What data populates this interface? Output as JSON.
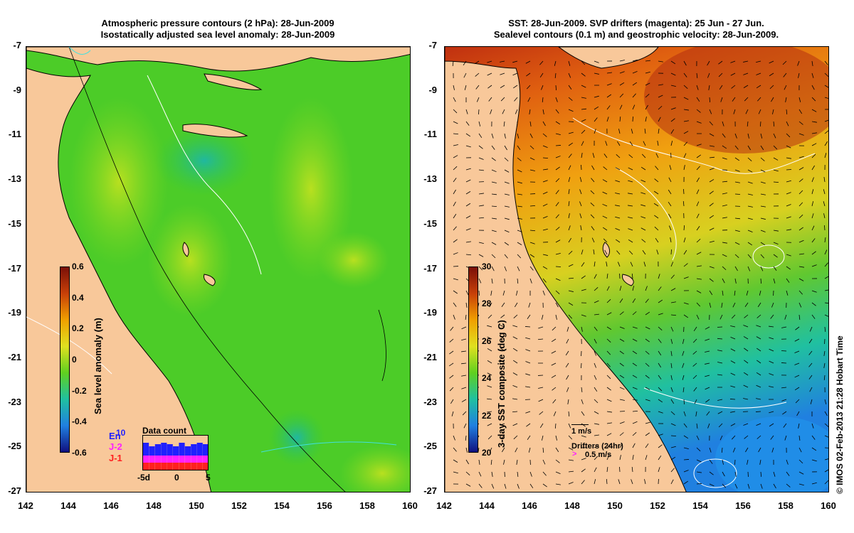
{
  "left_title": {
    "line1": "Atmospheric pressure contours (2 hPa): 28-Jun-2009",
    "line2": "Isostatically adjusted sea level anomaly: 28-Jun-2009"
  },
  "right_title": {
    "line1": "SST: 28-Jun-2009. SVP drifters (magenta): 25 Jun - 27 Jun.",
    "line2": "Sealevel contours (0.1 m) and geostrophic velocity: 28-Jun-2009."
  },
  "lat_ticks": [
    "-7",
    "-9",
    "-11",
    "-13",
    "-15",
    "-17",
    "-19",
    "-21",
    "-23",
    "-25",
    "-27"
  ],
  "lon_ticks": [
    "142",
    "144",
    "146",
    "148",
    "150",
    "152",
    "154",
    "156",
    "158",
    "160"
  ],
  "left_colorbar": {
    "label": "Sea level anomaly (m)",
    "ticks": [
      "0.6",
      "0.4",
      "0.2",
      "0",
      "-0.2",
      "-0.4",
      "-0.6"
    ]
  },
  "right_colorbar": {
    "label": "3-day SST composite (deg C)",
    "ticks": [
      "30",
      "28",
      "26",
      "24",
      "22",
      "20"
    ]
  },
  "data_count": {
    "title": "Data count",
    "legend": [
      "En",
      "J-2",
      "J-1"
    ],
    "legend_extra": "10",
    "xlabels": [
      "-5d",
      "0",
      "5"
    ],
    "legend_colors": [
      "#2020ff",
      "#ff20ff",
      "#ff2020"
    ]
  },
  "velocity_scale": "1 m/s",
  "drifters": {
    "label": "Drifters (24hr)",
    "scale": "0.5 m/s"
  },
  "credit": "© IMOS 02-Feb-2013 21:28 Hobart Time",
  "colors": {
    "land": "#f8c89a",
    "sea_mid": "#40d020",
    "sst_warm": "#e07010",
    "sst_cool": "#20a0e0"
  }
}
